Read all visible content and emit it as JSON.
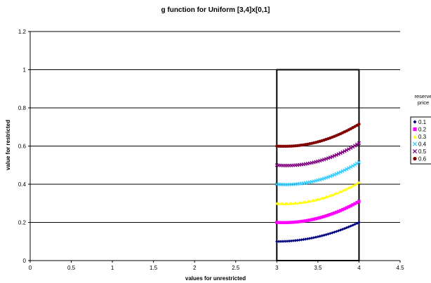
{
  "chart_data": {
    "type": "scatter",
    "title": "g function for Uniform [3,4]x[0,1]",
    "xlabel": "values for unrestricted",
    "ylabel": "value for restricted",
    "xlim": [
      0,
      4.5
    ],
    "ylim": [
      0,
      1.2
    ],
    "x_ticks": [
      "0",
      "0.5",
      "1",
      "1.5",
      "2",
      "2.5",
      "3",
      "3.5",
      "4",
      "4.5"
    ],
    "y_ticks": [
      "0",
      "0.2",
      "0.4",
      "0.6",
      "0.8",
      "1",
      "1.2"
    ],
    "grid": "horizontal",
    "legend_title": [
      "reserve",
      "price"
    ],
    "legend_position": "right",
    "box": {
      "x": [
        3,
        4
      ],
      "y": [
        0,
        1
      ]
    },
    "x_range": [
      3,
      4
    ],
    "points_per_series": 41,
    "series": [
      {
        "name": "0.1",
        "marker": "diamond",
        "color": "#000080",
        "values_at": {
          "3": 0.1,
          "3.5": 0.125,
          "4": 0.2
        }
      },
      {
        "name": "0.2",
        "marker": "square",
        "color": "#ff00ff",
        "values_at": {
          "3": 0.2,
          "3.5": 0.222,
          "4": 0.31
        }
      },
      {
        "name": "0.3",
        "marker": "triangle",
        "color": "#ffff00",
        "values_at": {
          "3": 0.3,
          "3.5": 0.322,
          "4": 0.41
        }
      },
      {
        "name": "0.4",
        "marker": "x",
        "color": "#33ccff",
        "values_at": {
          "3": 0.4,
          "3.5": 0.421,
          "4": 0.515
        }
      },
      {
        "name": "0.5",
        "marker": "x",
        "color": "#800080",
        "values_at": {
          "3": 0.5,
          "3.5": 0.52,
          "4": 0.615
        }
      },
      {
        "name": "0.6",
        "marker": "circle",
        "color": "#800000",
        "values_at": {
          "3": 0.6,
          "3.5": 0.622,
          "4": 0.715
        }
      }
    ]
  }
}
